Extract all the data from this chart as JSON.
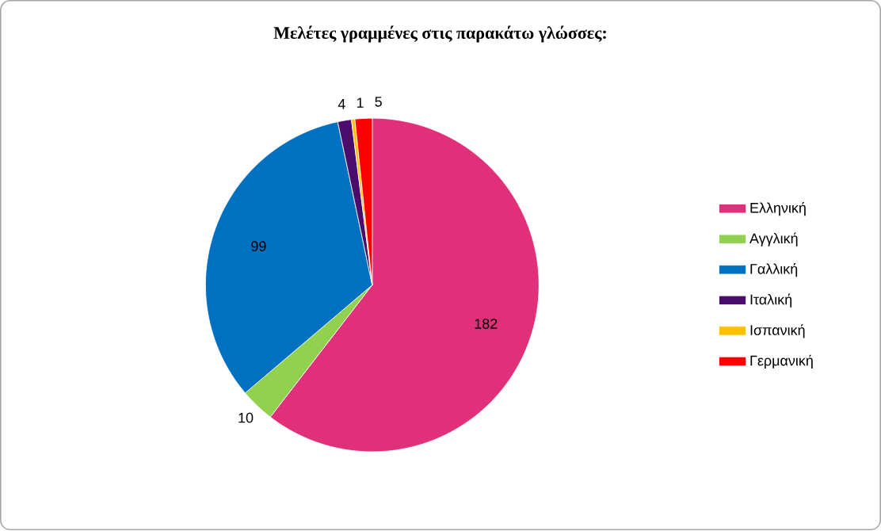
{
  "chart_data": {
    "type": "pie",
    "title": "Μελέτες γραμμένες στις παρακάτω  γλώσσες:",
    "categories": [
      "Ελληνική",
      "Αγγλική",
      "Γαλλική",
      "Ιταλική",
      "Ισπανική",
      "Γερμανική"
    ],
    "values": [
      182,
      10,
      99,
      4,
      1,
      5
    ],
    "colors": [
      "#e0307a",
      "#92d050",
      "#0070c0",
      "#4b0d6b",
      "#ffc000",
      "#ff0000"
    ],
    "data_labels": true,
    "legend": "right"
  }
}
